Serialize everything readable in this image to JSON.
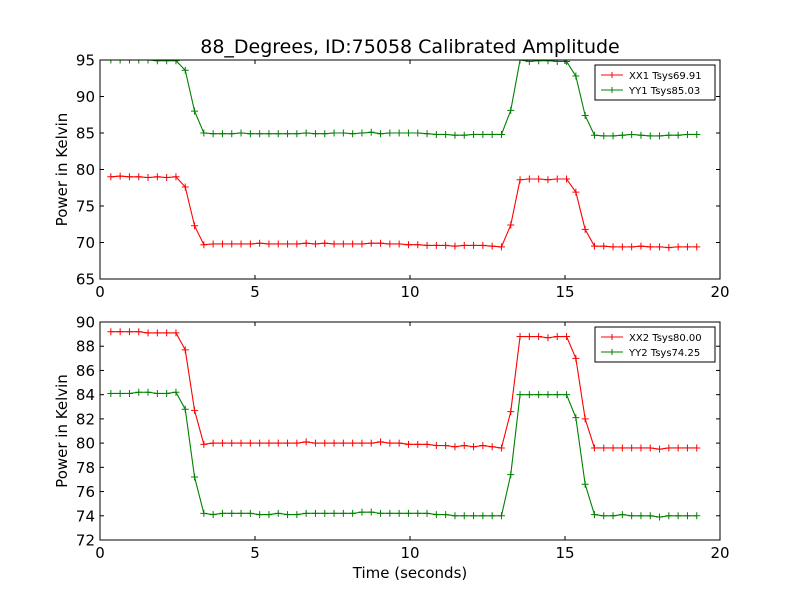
{
  "figure": {
    "title": "88_Degrees, ID:75058 Calibrated Amplitude",
    "xlabel": "Time (seconds)"
  },
  "chart_data": [
    {
      "type": "line",
      "xlabel": "",
      "ylabel": "Power in Kelvin",
      "xlim": [
        0,
        20
      ],
      "ylim": [
        65,
        95
      ],
      "xticks": [
        0,
        5,
        10,
        15,
        20
      ],
      "yticks": [
        65,
        70,
        75,
        80,
        85,
        90,
        95
      ],
      "grid": false,
      "legend_position": "top-right",
      "x": [
        0.35,
        0.65,
        0.95,
        1.25,
        1.55,
        1.85,
        2.15,
        2.45,
        2.75,
        3.05,
        3.35,
        3.65,
        3.95,
        4.25,
        4.55,
        4.85,
        5.15,
        5.45,
        5.75,
        6.05,
        6.35,
        6.65,
        6.95,
        7.25,
        7.55,
        7.85,
        8.15,
        8.45,
        8.75,
        9.05,
        9.35,
        9.65,
        9.95,
        10.25,
        10.55,
        10.85,
        11.15,
        11.45,
        11.75,
        12.05,
        12.35,
        12.65,
        12.95,
        13.25,
        13.55,
        13.85,
        14.15,
        14.45,
        14.75,
        15.05,
        15.35,
        15.65,
        15.95,
        16.25,
        16.55,
        16.85,
        17.15,
        17.45,
        17.75,
        18.05,
        18.35,
        18.65,
        18.95,
        19.25
      ],
      "series": [
        {
          "name": "XX1 Tsys69.91",
          "color": "#ff0000",
          "values": [
            79.0,
            79.1,
            79.0,
            79.0,
            78.9,
            79.0,
            78.9,
            79.0,
            77.6,
            72.3,
            69.7,
            69.8,
            69.8,
            69.8,
            69.8,
            69.8,
            69.9,
            69.8,
            69.8,
            69.8,
            69.8,
            69.9,
            69.8,
            69.9,
            69.8,
            69.8,
            69.8,
            69.8,
            69.9,
            69.9,
            69.8,
            69.8,
            69.7,
            69.7,
            69.6,
            69.6,
            69.6,
            69.5,
            69.6,
            69.6,
            69.6,
            69.5,
            69.4,
            72.4,
            78.6,
            78.7,
            78.7,
            78.6,
            78.7,
            78.7,
            76.9,
            71.8,
            69.5,
            69.5,
            69.4,
            69.4,
            69.4,
            69.5,
            69.4,
            69.4,
            69.3,
            69.4,
            69.4,
            69.4
          ]
        },
        {
          "name": "YY1 Tsys85.03",
          "color": "#008000",
          "values": [
            95.0,
            95.0,
            95.0,
            95.0,
            95.0,
            94.9,
            94.9,
            94.9,
            93.6,
            88.0,
            85.0,
            84.9,
            84.9,
            84.9,
            85.0,
            84.9,
            84.9,
            84.9,
            84.9,
            84.9,
            84.9,
            85.0,
            84.9,
            84.9,
            85.0,
            85.0,
            84.9,
            85.0,
            85.1,
            84.9,
            85.0,
            85.0,
            85.0,
            85.0,
            84.9,
            84.8,
            84.8,
            84.7,
            84.7,
            84.8,
            84.8,
            84.8,
            84.8,
            88.1,
            95.0,
            94.8,
            94.9,
            94.9,
            94.8,
            94.8,
            92.8,
            87.4,
            84.7,
            84.6,
            84.6,
            84.7,
            84.8,
            84.7,
            84.6,
            84.6,
            84.7,
            84.7,
            84.8,
            84.8
          ]
        }
      ]
    },
    {
      "type": "line",
      "xlabel": "Time (seconds)",
      "ylabel": "Power in Kelvin",
      "xlim": [
        0,
        20
      ],
      "ylim": [
        72,
        90
      ],
      "xticks": [
        0,
        5,
        10,
        15,
        20
      ],
      "yticks": [
        72,
        74,
        76,
        78,
        80,
        82,
        84,
        86,
        88,
        90
      ],
      "grid": false,
      "legend_position": "top-right",
      "x": [
        0.35,
        0.65,
        0.95,
        1.25,
        1.55,
        1.85,
        2.15,
        2.45,
        2.75,
        3.05,
        3.35,
        3.65,
        3.95,
        4.25,
        4.55,
        4.85,
        5.15,
        5.45,
        5.75,
        6.05,
        6.35,
        6.65,
        6.95,
        7.25,
        7.55,
        7.85,
        8.15,
        8.45,
        8.75,
        9.05,
        9.35,
        9.65,
        9.95,
        10.25,
        10.55,
        10.85,
        11.15,
        11.45,
        11.75,
        12.05,
        12.35,
        12.65,
        12.95,
        13.25,
        13.55,
        13.85,
        14.15,
        14.45,
        14.75,
        15.05,
        15.35,
        15.65,
        15.95,
        16.25,
        16.55,
        16.85,
        17.15,
        17.45,
        17.75,
        18.05,
        18.35,
        18.65,
        18.95,
        19.25
      ],
      "series": [
        {
          "name": "XX2 Tsys80.00",
          "color": "#ff0000",
          "values": [
            89.2,
            89.2,
            89.2,
            89.2,
            89.1,
            89.1,
            89.1,
            89.1,
            87.7,
            82.7,
            79.9,
            80.0,
            80.0,
            80.0,
            80.0,
            80.0,
            80.0,
            80.0,
            80.0,
            80.0,
            80.0,
            80.1,
            80.0,
            80.0,
            80.0,
            80.0,
            80.0,
            80.0,
            80.0,
            80.1,
            80.0,
            80.0,
            79.9,
            79.9,
            79.9,
            79.8,
            79.8,
            79.7,
            79.8,
            79.7,
            79.8,
            79.7,
            79.6,
            82.6,
            88.8,
            88.8,
            88.8,
            88.7,
            88.8,
            88.8,
            87.0,
            82.0,
            79.6,
            79.6,
            79.6,
            79.6,
            79.6,
            79.6,
            79.6,
            79.5,
            79.6,
            79.6,
            79.6,
            79.6
          ]
        },
        {
          "name": "YY2 Tsys74.25",
          "color": "#008000",
          "values": [
            84.1,
            84.1,
            84.1,
            84.2,
            84.2,
            84.1,
            84.1,
            84.2,
            82.8,
            77.2,
            74.2,
            74.1,
            74.2,
            74.2,
            74.2,
            74.2,
            74.1,
            74.1,
            74.2,
            74.1,
            74.1,
            74.2,
            74.2,
            74.2,
            74.2,
            74.2,
            74.2,
            74.3,
            74.3,
            74.2,
            74.2,
            74.2,
            74.2,
            74.2,
            74.2,
            74.1,
            74.1,
            74.0,
            74.0,
            74.0,
            74.0,
            74.0,
            74.0,
            77.4,
            84.0,
            84.0,
            84.0,
            84.0,
            84.0,
            84.0,
            82.1,
            76.6,
            74.1,
            74.0,
            74.0,
            74.1,
            74.0,
            74.0,
            74.0,
            73.9,
            74.0,
            74.0,
            74.0,
            74.0
          ]
        }
      ]
    }
  ]
}
